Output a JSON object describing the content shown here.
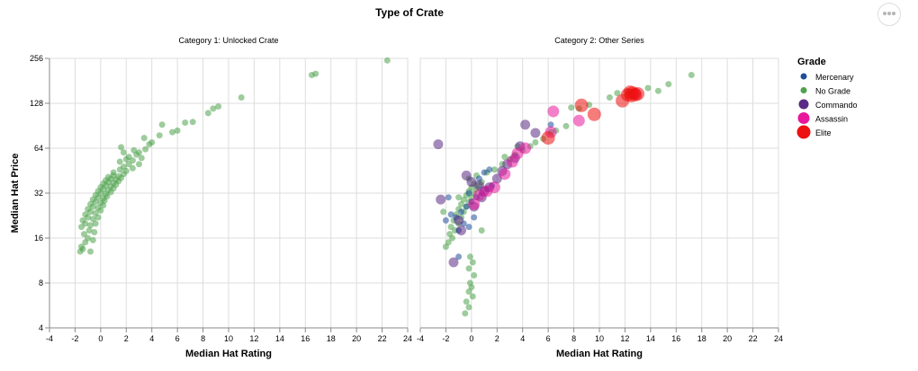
{
  "title": "Type of Crate",
  "menu_icon": "ellipsis-icon",
  "legend": {
    "title": "Grade",
    "items": [
      {
        "label": "Mercenary",
        "color": "#1f4e9a",
        "size": "small"
      },
      {
        "label": "No Grade",
        "color": "#4ea34c",
        "size": "small"
      },
      {
        "label": "Commando",
        "color": "#5a2a84",
        "size": "medium"
      },
      {
        "label": "Assassin",
        "color": "#e8179c",
        "size": "large"
      },
      {
        "label": "Elite",
        "color": "#ee1111",
        "size": "xlarge"
      }
    ]
  },
  "chart_data": {
    "type": "scatter",
    "title": "Type of Crate",
    "xlabel": "Median Hat Rating",
    "ylabel": "Median Hat Price",
    "x_domain": [
      -4,
      24
    ],
    "x_ticks": [
      -4,
      -2,
      0,
      2,
      4,
      6,
      8,
      10,
      12,
      14,
      16,
      18,
      20,
      22,
      24
    ],
    "y_scale": "log2",
    "y_domain": [
      4,
      256
    ],
    "y_ticks": [
      4,
      8,
      16,
      32,
      64,
      128,
      256
    ],
    "grid": true,
    "legend_position": "right",
    "panels": [
      {
        "title": "Category 1: Unlocked Crate",
        "series": [
          {
            "grade": "No Grade",
            "points": [
              [
                -1.6,
                13
              ],
              [
                -1.4,
                13.5
              ],
              [
                -0.8,
                13
              ],
              [
                -1.5,
                14
              ],
              [
                -1.2,
                15
              ],
              [
                -1.0,
                16
              ],
              [
                -0.6,
                15.5
              ],
              [
                -1.3,
                17
              ],
              [
                -0.9,
                18
              ],
              [
                -0.5,
                17.5
              ],
              [
                -1.5,
                19
              ],
              [
                -1.2,
                20
              ],
              [
                -0.8,
                19.5
              ],
              [
                -0.4,
                20
              ],
              [
                -1.4,
                21
              ],
              [
                -1.0,
                22
              ],
              [
                -0.6,
                21.5
              ],
              [
                -0.2,
                22
              ],
              [
                -1.2,
                23
              ],
              [
                -0.8,
                24
              ],
              [
                -0.4,
                23.5
              ],
              [
                0.0,
                24.5
              ],
              [
                -1.0,
                25
              ],
              [
                -0.6,
                26
              ],
              [
                -0.2,
                25.5
              ],
              [
                0.2,
                26.5
              ],
              [
                -0.8,
                27
              ],
              [
                -0.4,
                28
              ],
              [
                0.0,
                27.5
              ],
              [
                0.3,
                28.5
              ],
              [
                -0.6,
                29
              ],
              [
                -0.2,
                30
              ],
              [
                0.2,
                29.5
              ],
              [
                0.5,
                30.5
              ],
              [
                -0.4,
                31
              ],
              [
                0.0,
                32
              ],
              [
                0.4,
                31.5
              ],
              [
                0.8,
                32.5
              ],
              [
                -0.2,
                33
              ],
              [
                0.2,
                34
              ],
              [
                0.6,
                33.5
              ],
              [
                1.0,
                34.5
              ],
              [
                0.0,
                35
              ],
              [
                0.4,
                36
              ],
              [
                0.8,
                35.5
              ],
              [
                1.2,
                36.5
              ],
              [
                0.2,
                37
              ],
              [
                0.6,
                38
              ],
              [
                1.0,
                37.5
              ],
              [
                1.4,
                38.5
              ],
              [
                0.4,
                39
              ],
              [
                0.8,
                40
              ],
              [
                1.2,
                39.5
              ],
              [
                1.6,
                40.5
              ],
              [
                0.6,
                41
              ],
              [
                1.0,
                42
              ],
              [
                1.4,
                41.5
              ],
              [
                1.8,
                43
              ],
              [
                1.0,
                44
              ],
              [
                1.5,
                46
              ],
              [
                2.0,
                45
              ],
              [
                1.8,
                48
              ],
              [
                2.2,
                50
              ],
              [
                1.5,
                52
              ],
              [
                2.0,
                54
              ],
              [
                2.5,
                53
              ],
              [
                2.2,
                56
              ],
              [
                2.8,
                58
              ],
              [
                1.8,
                60
              ],
              [
                2.6,
                62
              ],
              [
                3.0,
                50
              ],
              [
                3.2,
                55
              ],
              [
                2.5,
                47
              ],
              [
                3.0,
                60
              ],
              [
                1.6,
                65
              ],
              [
                3.5,
                63
              ],
              [
                3.8,
                68
              ],
              [
                3.4,
                75
              ],
              [
                4.0,
                70
              ],
              [
                4.6,
                78
              ],
              [
                4.8,
                92
              ],
              [
                5.6,
                82
              ],
              [
                6.0,
                84
              ],
              [
                6.6,
                95
              ],
              [
                7.2,
                96
              ],
              [
                8.4,
                110
              ],
              [
                8.8,
                118
              ],
              [
                9.2,
                122
              ],
              [
                11.0,
                140
              ],
              [
                16.5,
                198
              ],
              [
                16.8,
                202
              ],
              [
                22.4,
                248
              ]
            ]
          }
        ]
      },
      {
        "title": "Category 2: Other Series",
        "series": [
          {
            "grade": "No Grade",
            "points": [
              [
                -2.0,
                14
              ],
              [
                -1.8,
                15
              ],
              [
                -1.5,
                16
              ],
              [
                -1.7,
                17
              ],
              [
                -1.3,
                18
              ],
              [
                -1.6,
                19
              ],
              [
                -1.0,
                20
              ],
              [
                -1.4,
                21
              ],
              [
                -0.8,
                22
              ],
              [
                -1.2,
                23
              ],
              [
                -0.6,
                24
              ],
              [
                -1.0,
                25
              ],
              [
                -0.4,
                26
              ],
              [
                -0.8,
                27
              ],
              [
                -0.2,
                28
              ],
              [
                -0.6,
                29
              ],
              [
                0.0,
                30
              ],
              [
                -0.4,
                31
              ],
              [
                0.2,
                32
              ],
              [
                -0.2,
                33
              ],
              [
                0.4,
                34
              ],
              [
                0.0,
                35
              ],
              [
                0.6,
                36
              ],
              [
                0.2,
                37
              ],
              [
                0.8,
                38
              ],
              [
                -0.1,
                12
              ],
              [
                0.1,
                11
              ],
              [
                -0.2,
                10
              ],
              [
                0.2,
                9
              ],
              [
                -0.1,
                8
              ],
              [
                0.0,
                7.5
              ],
              [
                -0.2,
                7
              ],
              [
                -0.4,
                6
              ],
              [
                -0.2,
                5.5
              ],
              [
                -0.5,
                5
              ],
              [
                0.1,
                6.5
              ],
              [
                -2.2,
                24
              ],
              [
                -1.0,
                30
              ],
              [
                -0.2,
                40
              ],
              [
                0.4,
                42
              ],
              [
                1.2,
                44
              ],
              [
                1.8,
                46
              ],
              [
                2.4,
                50
              ],
              [
                3.0,
                54
              ],
              [
                3.4,
                58
              ],
              [
                4.0,
                62
              ],
              [
                4.6,
                66
              ],
              [
                5.0,
                70
              ],
              [
                5.6,
                74
              ],
              [
                6.2,
                82
              ],
              [
                6.6,
                84
              ],
              [
                7.4,
                90
              ],
              [
                7.8,
                120
              ],
              [
                8.4,
                118
              ],
              [
                9.2,
                125
              ],
              [
                10.8,
                140
              ],
              [
                11.4,
                150
              ],
              [
                12.2,
                152
              ],
              [
                13.8,
                162
              ],
              [
                14.6,
                155
              ],
              [
                15.4,
                172
              ],
              [
                17.2,
                198
              ],
              [
                2.6,
                56
              ],
              [
                3.6,
                66
              ],
              [
                0.8,
                18
              ]
            ]
          },
          {
            "grade": "Mercenary",
            "points": [
              [
                -2.0,
                21
              ],
              [
                -1.6,
                23
              ],
              [
                -1.2,
                22
              ],
              [
                -0.8,
                24
              ],
              [
                -0.4,
                26
              ],
              [
                0.0,
                28
              ],
              [
                0.4,
                30
              ],
              [
                0.8,
                32
              ],
              [
                1.2,
                34
              ],
              [
                1.6,
                36
              ],
              [
                -1.0,
                18
              ],
              [
                -0.6,
                20
              ],
              [
                -0.2,
                19
              ],
              [
                0.2,
                22
              ],
              [
                -1.8,
                30
              ],
              [
                -1.0,
                12
              ],
              [
                0.6,
                40
              ],
              [
                1.0,
                44
              ],
              [
                1.4,
                46
              ],
              [
                -0.2,
                32
              ],
              [
                6.2,
                92
              ]
            ]
          },
          {
            "grade": "Commando",
            "points": [
              [
                -2.6,
                68
              ],
              [
                -2.4,
                29
              ],
              [
                -1.4,
                11
              ],
              [
                -1.0,
                21
              ],
              [
                -0.4,
                42
              ],
              [
                0.0,
                38
              ],
              [
                0.6,
                36
              ],
              [
                1.0,
                33
              ],
              [
                1.4,
                35
              ],
              [
                2.0,
                40
              ],
              [
                2.4,
                45
              ],
              [
                2.8,
                50
              ],
              [
                3.4,
                55
              ],
              [
                3.8,
                66
              ],
              [
                4.2,
                92
              ],
              [
                5.0,
                81
              ],
              [
                0.2,
                26
              ],
              [
                -0.8,
                18
              ],
              [
                0.8,
                30
              ]
            ]
          },
          {
            "grade": "Assassin",
            "points": [
              [
                0.2,
                27
              ],
              [
                0.6,
                31
              ],
              [
                1.2,
                33
              ],
              [
                1.8,
                35
              ],
              [
                2.6,
                43
              ],
              [
                3.2,
                52
              ],
              [
                3.6,
                59
              ],
              [
                4.2,
                64
              ],
              [
                6.2,
                82
              ],
              [
                6.4,
                113
              ],
              [
                8.4,
                98
              ],
              [
                12.8,
                148
              ]
            ]
          },
          {
            "grade": "Elite",
            "points": [
              [
                6.0,
                75
              ],
              [
                8.6,
                124
              ],
              [
                9.6,
                108
              ],
              [
                11.8,
                133
              ],
              [
                12.2,
                146
              ],
              [
                12.4,
                152
              ],
              [
                12.6,
                150
              ],
              [
                12.8,
                146
              ],
              [
                13.0,
                148
              ],
              [
                12.5,
                144
              ]
            ]
          }
        ]
      }
    ]
  }
}
